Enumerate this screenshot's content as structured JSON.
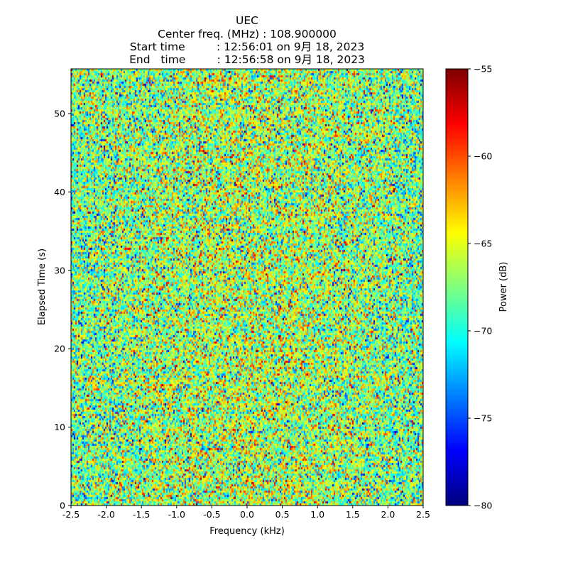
{
  "chart_data": {
    "type": "heatmap",
    "title_lines": [
      "UEC",
      "Center freq. (MHz) : 108.900000",
      "Start time         : 12:56:01 on 9月 18, 2023",
      "End   time         : 12:56:58 on 9月 18, 2023"
    ],
    "xlabel": "Frequency (kHz)",
    "ylabel": "Elapsed Time (s)",
    "xlim": [
      -2.5,
      2.5
    ],
    "ylim": [
      0,
      55.7
    ],
    "xticks": [
      "-2.5",
      "-2.0",
      "-1.5",
      "-1.0",
      "-0.5",
      "0.0",
      "0.5",
      "1.0",
      "1.5",
      "2.0",
      "2.5"
    ],
    "xtick_values": [
      -2.5,
      -2.0,
      -1.5,
      -1.0,
      -0.5,
      0.0,
      0.5,
      1.0,
      1.5,
      2.0,
      2.5
    ],
    "yticks": [
      "0",
      "10",
      "20",
      "30",
      "40",
      "50"
    ],
    "ytick_values": [
      0,
      10,
      20,
      30,
      40,
      50
    ],
    "colorbar": {
      "label": "Power (dB)",
      "range": [
        -80,
        -55
      ],
      "ticks": [
        "−80",
        "−75",
        "−70",
        "−65",
        "−60",
        "−55"
      ],
      "tick_values": [
        -80,
        -75,
        -70,
        -65,
        -60,
        -55
      ],
      "colormap": "jet"
    },
    "values_summary": {
      "distribution": "noise",
      "mean_db": -68,
      "std_db": 4
    }
  }
}
